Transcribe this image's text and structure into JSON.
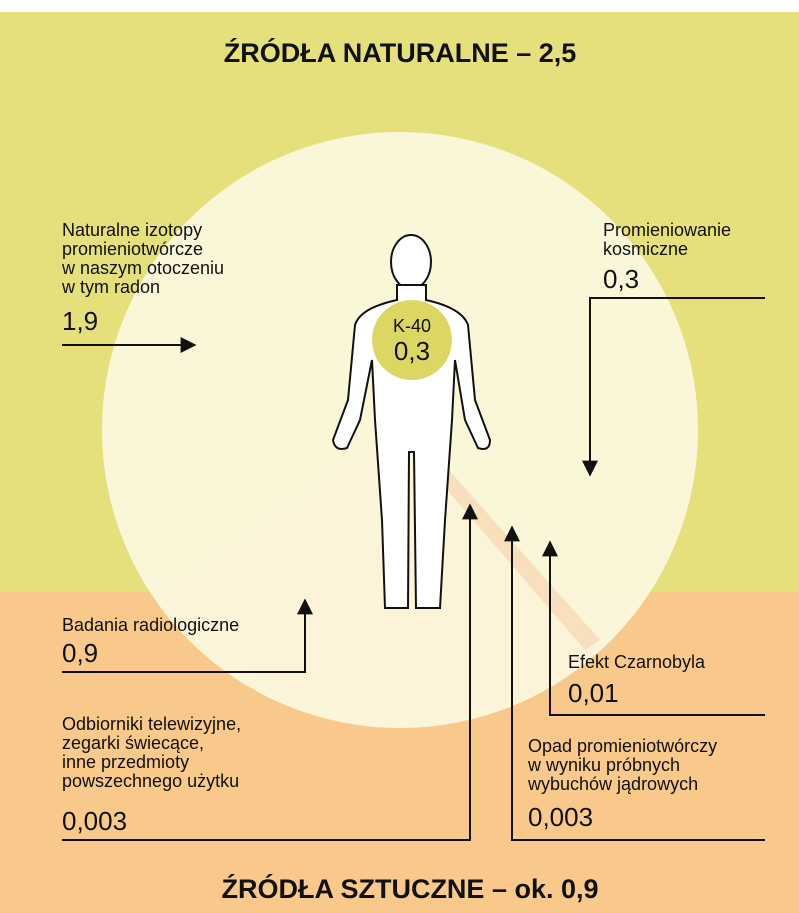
{
  "header": {
    "title": "ŹRÓDŁA NATURALNE – 2,5"
  },
  "center": {
    "label": "K-40",
    "value": "0,3"
  },
  "sources": [
    {
      "lines": [
        "Naturalne izotopy",
        "promieniotwórcze",
        "w naszym otoczeniu",
        "w tym radon"
      ],
      "value": "1,9"
    },
    {
      "lines": [
        "Promieniowanie",
        "kosmiczne"
      ],
      "value": "0,3"
    },
    {
      "lines": [
        "Badania radiologiczne"
      ],
      "value": "0,9"
    },
    {
      "lines": [
        "Efekt Czarnobyla"
      ],
      "value": "0,01"
    },
    {
      "lines": [
        "Odbiorniki telewizyjne,",
        "zegarki świecące,",
        "inne przedmioty",
        "powszechnego użytku"
      ],
      "value": "0,003"
    },
    {
      "lines": [
        "Opad promieniotwórczy",
        "w wyniku próbnych",
        "wybuchów jądrowych"
      ],
      "value": "0,003"
    }
  ],
  "footer": {
    "title": "ŹRÓDŁA SZTUCZNE – ok. 0,9"
  }
}
